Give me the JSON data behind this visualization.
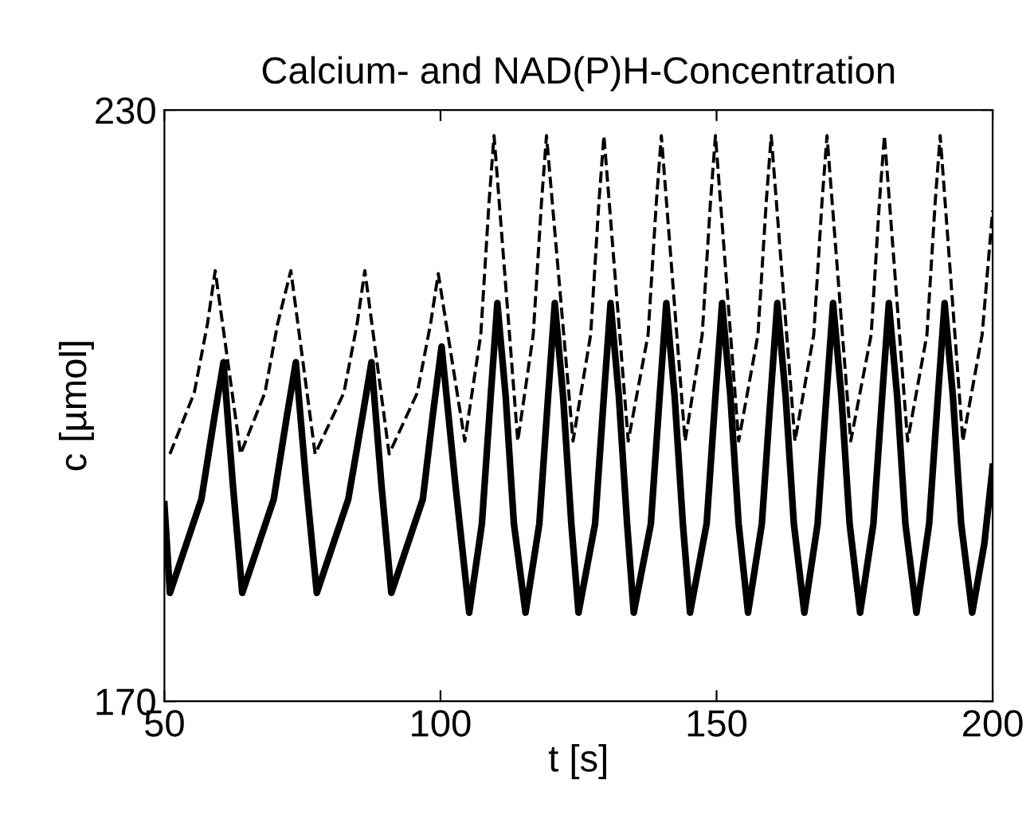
{
  "chart_data": {
    "type": "line",
    "title": "Calcium- and NAD(P)H-Concentration",
    "xlabel": "t [s]",
    "ylabel": "c [µmol]",
    "xlim": [
      50,
      200
    ],
    "ylim": [
      170,
      230
    ],
    "xticks": [
      50,
      100,
      150,
      200
    ],
    "yticks": [
      170,
      230
    ],
    "grid": false,
    "legend": false,
    "series": [
      {
        "color": "#000000",
        "line_style": "dashed",
        "x": [
          51,
          55.4,
          57.8,
          59.2,
          63.8,
          68.2,
          70.5,
          72.9,
          77.3,
          82.5,
          84.9,
          86.3,
          90.7,
          95.8,
          98.2,
          99.6,
          104.4,
          107.3,
          108.8,
          109.7,
          114,
          116.8,
          118.3,
          119.2,
          124,
          127.2,
          128.7,
          129.6,
          134,
          137.6,
          139.1,
          140,
          144.3,
          147.4,
          148.9,
          149.8,
          154,
          157.5,
          159,
          159.9,
          164.2,
          167.6,
          169.1,
          170,
          174.3,
          178,
          179.5,
          180.4,
          184.6,
          188.1,
          189.6,
          190.5,
          194.6,
          198.1,
          200
        ],
        "values": [
          195.1,
          201.3,
          208.3,
          213.7,
          195.1,
          201.3,
          208.3,
          213.7,
          195.1,
          201.3,
          208.3,
          213.7,
          195.1,
          201.3,
          208.3,
          213.4,
          196.4,
          207.2,
          220.7,
          227.4,
          196.4,
          207.2,
          220.7,
          227.4,
          196.4,
          207.2,
          220.7,
          227.4,
          196.4,
          207.2,
          220.7,
          227.4,
          196.4,
          207.2,
          220.7,
          227.4,
          196.4,
          207.2,
          220.7,
          227.4,
          196.4,
          207.2,
          220.7,
          227.4,
          196.4,
          207.2,
          220.7,
          227.4,
          196.4,
          207.2,
          220.7,
          227.4,
          196.4,
          207.2,
          219.8
        ]
      },
      {
        "color": "#000000",
        "line_style": "solid",
        "x": [
          50,
          51,
          56.7,
          59.1,
          60.7,
          62.4,
          64.1,
          69.8,
          72.2,
          73.8,
          75.7,
          77.6,
          83.3,
          85.9,
          87.5,
          89.3,
          91.1,
          96.8,
          98.6,
          100.2,
          102.7,
          105.2,
          107.5,
          109.1,
          110.3,
          111.8,
          113.3,
          115.4,
          117.9,
          119.5,
          120.7,
          122.2,
          123.7,
          125,
          128,
          129.6,
          130.8,
          132.3,
          133.8,
          135,
          138.1,
          139.7,
          140.9,
          142.4,
          143.9,
          145.2,
          148.2,
          149.8,
          151,
          152.5,
          154,
          155.7,
          158.2,
          159.8,
          161,
          162.5,
          164,
          165.9,
          168.3,
          169.9,
          171.1,
          172.6,
          174.1,
          176,
          178.4,
          180,
          181.2,
          182.7,
          184.2,
          186.2,
          188.5,
          190.1,
          191.3,
          192.8,
          194.3,
          196.3,
          198.5,
          200
        ],
        "values": [
          190,
          181,
          190.5,
          199,
          204.4,
          192,
          181,
          190.5,
          199,
          204.4,
          192,
          181,
          190.5,
          199,
          204.4,
          192,
          181,
          190.5,
          199,
          206,
          192,
          179,
          188,
          201,
          210.4,
          201,
          188,
          179,
          188,
          201,
          210.4,
          201,
          188,
          179,
          188,
          201,
          210.4,
          201,
          188,
          179,
          188,
          201,
          210.4,
          201,
          188,
          179,
          188,
          201,
          210.4,
          201,
          188,
          179,
          188,
          201,
          210.4,
          201,
          188,
          179,
          188,
          201,
          210.4,
          201,
          188,
          179,
          188,
          201,
          210.4,
          201,
          188,
          179,
          188,
          201,
          210.4,
          201,
          188,
          179,
          186,
          193.8
        ]
      }
    ]
  }
}
